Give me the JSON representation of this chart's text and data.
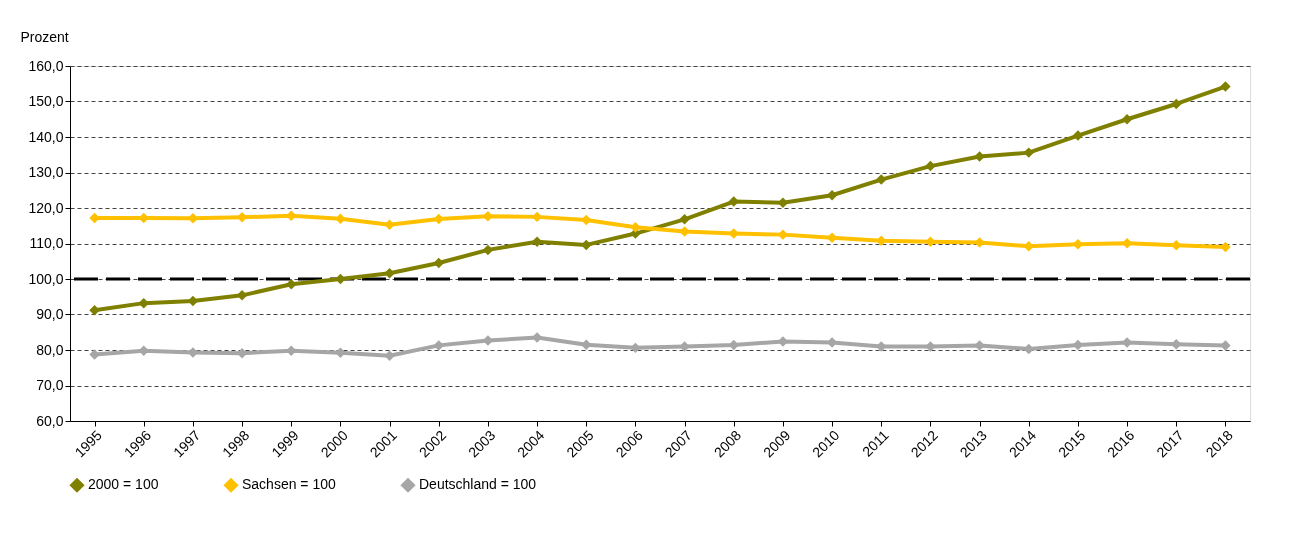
{
  "chart_data": {
    "type": "line",
    "ylabel": "Prozent",
    "categories": [
      "1995",
      "1996",
      "1997",
      "1998",
      "1999",
      "2000",
      "2001",
      "2002",
      "2003",
      "2004",
      "2005",
      "2006",
      "2007",
      "2008",
      "2009",
      "2010",
      "2011",
      "2012",
      "2013",
      "2014",
      "2015",
      "2016",
      "2017",
      "2018"
    ],
    "series": [
      {
        "name": "2000 = 100",
        "color": "#808000",
        "values": [
          91.2,
          93.2,
          93.8,
          95.4,
          98.5,
          100.0,
          101.6,
          104.5,
          108.2,
          110.5,
          109.6,
          112.8,
          116.8,
          121.8,
          121.5,
          123.6,
          128.0,
          131.8,
          134.5,
          135.6,
          140.4,
          145.0,
          149.3,
          154.2
        ]
      },
      {
        "name": "Sachsen = 100",
        "color": "#ffc000",
        "values": [
          117.2,
          117.2,
          117.1,
          117.4,
          117.8,
          117.0,
          115.3,
          116.9,
          117.7,
          117.5,
          116.6,
          114.6,
          113.4,
          112.8,
          112.5,
          111.6,
          110.8,
          110.5,
          110.3,
          109.2,
          109.8,
          110.1,
          109.5,
          109.0
        ]
      },
      {
        "name": "Deutschland = 100",
        "color": "#a6a6a6",
        "values": [
          78.7,
          79.8,
          79.3,
          79.1,
          79.8,
          79.2,
          78.4,
          81.3,
          82.7,
          83.5,
          81.5,
          80.6,
          81.0,
          81.4,
          82.4,
          82.1,
          81.0,
          81.0,
          81.3,
          80.3,
          81.4,
          82.1,
          81.6,
          81.3
        ]
      }
    ],
    "ylim": [
      60,
      160
    ],
    "yticks": [
      {
        "value": 60,
        "label": "60,0"
      },
      {
        "value": 70,
        "label": "70,0"
      },
      {
        "value": 80,
        "label": "80,0"
      },
      {
        "value": 90,
        "label": "90,0"
      },
      {
        "value": 100,
        "label": "100,0"
      },
      {
        "value": 110,
        "label": "110,0"
      },
      {
        "value": 120,
        "label": "120,0"
      },
      {
        "value": 130,
        "label": "130,0"
      },
      {
        "value": 140,
        "label": "140,0"
      },
      {
        "value": 150,
        "label": "150,0"
      },
      {
        "value": 160,
        "label": "160,0"
      }
    ],
    "ref_lines": [
      {
        "axis": "y",
        "value": 100,
        "label": null,
        "color": "#000000",
        "line_style": "dashed"
      }
    ],
    "grid": "y",
    "legend": "bottom",
    "marker": "diamond",
    "line_style": "solid"
  }
}
